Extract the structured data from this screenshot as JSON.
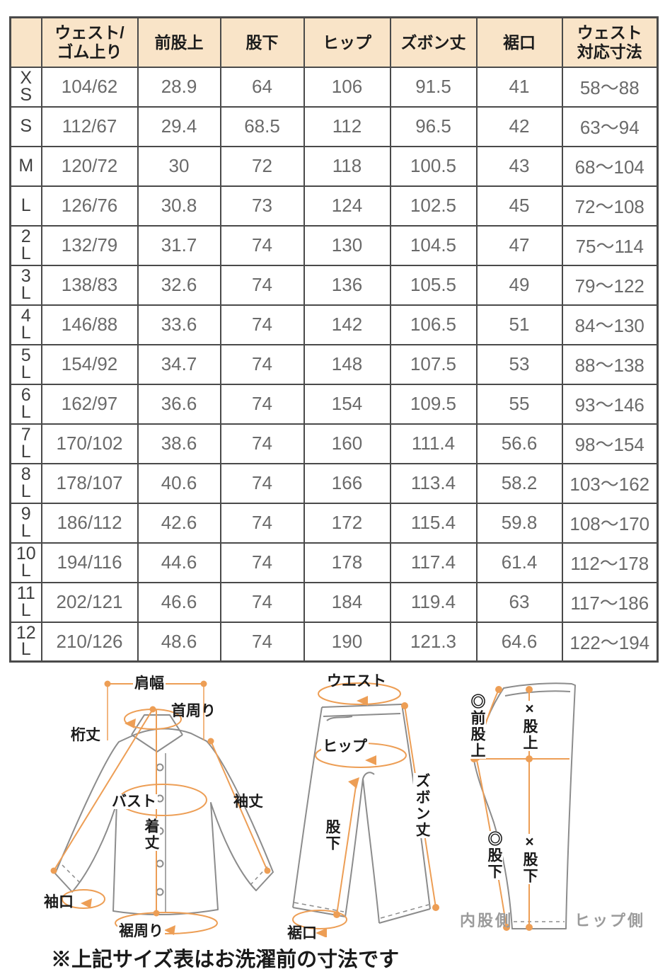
{
  "colors": {
    "header_bg": "#f9e4c8",
    "accent_orange": "#ED9E55",
    "table_border": "#4a4a4a",
    "value_text": "#6a6a6a",
    "outline_gray": "#8c8c8c",
    "side_label_gray": "#9b9b9b"
  },
  "table": {
    "corner": "",
    "headers": [
      "ウェスト/\nゴム上り",
      "前股上",
      "股下",
      "ヒップ",
      "ズボン丈",
      "裾口",
      "ウェスト\n対応寸法"
    ],
    "rows": [
      {
        "size": "XS",
        "values": [
          "104/62",
          "28.9",
          "64",
          "106",
          "91.5",
          "41",
          "58〜88"
        ]
      },
      {
        "size": "S",
        "values": [
          "112/67",
          "29.4",
          "68.5",
          "112",
          "96.5",
          "42",
          "63〜94"
        ]
      },
      {
        "size": "M",
        "values": [
          "120/72",
          "30",
          "72",
          "118",
          "100.5",
          "43",
          "68〜104"
        ]
      },
      {
        "size": "L",
        "values": [
          "126/76",
          "30.8",
          "73",
          "124",
          "102.5",
          "45",
          "72〜108"
        ]
      },
      {
        "size": "2L",
        "values": [
          "132/79",
          "31.7",
          "74",
          "130",
          "104.5",
          "47",
          "75〜114"
        ]
      },
      {
        "size": "3L",
        "values": [
          "138/83",
          "32.6",
          "74",
          "136",
          "105.5",
          "49",
          "79〜122"
        ]
      },
      {
        "size": "4L",
        "values": [
          "146/88",
          "33.6",
          "74",
          "142",
          "106.5",
          "51",
          "84〜130"
        ]
      },
      {
        "size": "5L",
        "values": [
          "154/92",
          "34.7",
          "74",
          "148",
          "107.5",
          "53",
          "88〜138"
        ]
      },
      {
        "size": "6L",
        "values": [
          "162/97",
          "36.6",
          "74",
          "154",
          "109.5",
          "55",
          "93〜146"
        ]
      },
      {
        "size": "7L",
        "values": [
          "170/102",
          "38.6",
          "74",
          "160",
          "111.4",
          "56.6",
          "98〜154"
        ]
      },
      {
        "size": "8L",
        "values": [
          "178/107",
          "40.6",
          "74",
          "166",
          "113.4",
          "58.2",
          "103〜162"
        ]
      },
      {
        "size": "9L",
        "values": [
          "186/112",
          "42.6",
          "74",
          "172",
          "115.4",
          "59.8",
          "108〜170"
        ]
      },
      {
        "size": "10L",
        "values": [
          "194/116",
          "44.6",
          "74",
          "178",
          "117.4",
          "61.4",
          "112〜178"
        ]
      },
      {
        "size": "11L",
        "values": [
          "202/121",
          "46.6",
          "74",
          "184",
          "119.4",
          "63",
          "117〜186"
        ]
      },
      {
        "size": "12L",
        "values": [
          "210/126",
          "48.6",
          "74",
          "190",
          "121.3",
          "64.6",
          "122〜194"
        ]
      }
    ]
  },
  "diagrams": {
    "shirt": {
      "labels": {
        "shoulder": "肩幅",
        "neck": "首周り",
        "yuki": "桁丈",
        "bust": "バスト",
        "length": "着丈",
        "sleeve": "袖丈",
        "cuff": "袖口",
        "hem": "裾周り"
      }
    },
    "pants_front": {
      "labels": {
        "waist": "ウエスト",
        "hip": "ヒップ",
        "pants_length": "ズボン丈",
        "inseam": "股下",
        "hem": "裾口"
      }
    },
    "pants_side": {
      "labels": {
        "front_rise": "◎前股上",
        "rise": "×股上",
        "inseam_left": "◎股下",
        "inseam_center": "×股下",
        "inner_side": "内股側",
        "hip_side": "ヒップ側"
      }
    },
    "note": "※上記サイズ表はお洗濯前の寸法です"
  }
}
